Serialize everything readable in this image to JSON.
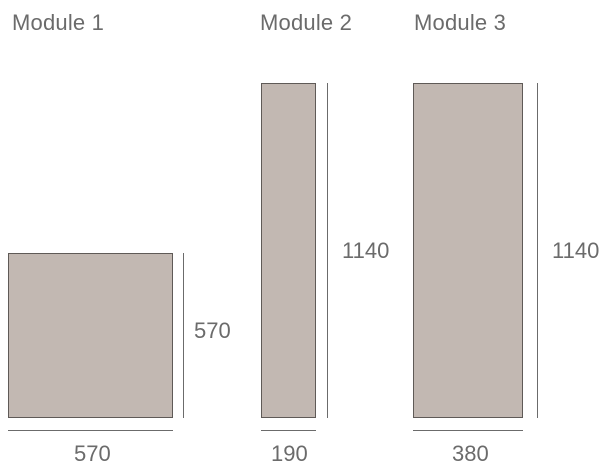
{
  "modules": [
    {
      "title": "Module 1",
      "width_label": "570",
      "height_label": "570"
    },
    {
      "title": "Module 2",
      "width_label": "190",
      "height_label": "1140"
    },
    {
      "title": "Module 3",
      "width_label": "380",
      "height_label": "1140"
    }
  ],
  "colors": {
    "panel_fill": "#c2b8b2",
    "panel_border": "#5f5a57",
    "text": "#6b6b6b"
  }
}
